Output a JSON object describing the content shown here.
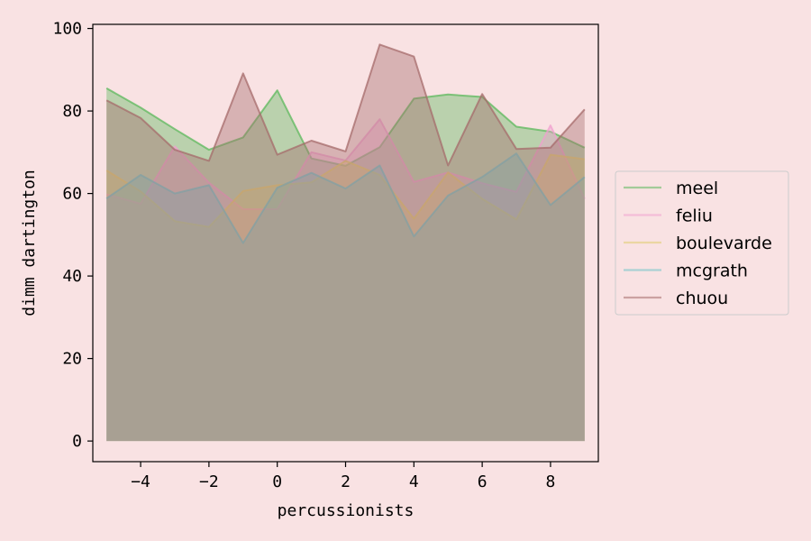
{
  "chart_data": {
    "type": "area",
    "title": "",
    "xlabel": "percussionists",
    "ylabel": "dimm dartington",
    "xlim": [
      -5.4,
      9.4
    ],
    "ylim": [
      -5,
      101
    ],
    "xticks": [
      -4,
      -2,
      0,
      2,
      4,
      6,
      8
    ],
    "yticks": [
      0,
      20,
      40,
      60,
      80,
      100
    ],
    "xtick_labels": [
      "−4",
      "−2",
      "0",
      "2",
      "4",
      "6",
      "8"
    ],
    "ytick_labels": [
      "0",
      "20",
      "40",
      "60",
      "80",
      "100"
    ],
    "grid": false,
    "legend_position": "outside-right",
    "x": [
      -5,
      -4,
      -3,
      -2,
      -1,
      0,
      1,
      2,
      3,
      4,
      5,
      6,
      7,
      8,
      9
    ],
    "series": [
      {
        "name": "meel",
        "color": "#5cb85c",
        "values": [
          85.5,
          80.8,
          75.6,
          70.6,
          73.6,
          85.0,
          68.5,
          66.7,
          71.2,
          83.0,
          84.0,
          83.4,
          76.2,
          75.0,
          71.1
        ]
      },
      {
        "name": "feliu",
        "color": "#f09fcf",
        "values": [
          59.8,
          57.5,
          71.4,
          62.6,
          56.2,
          56.2,
          70.0,
          68.0,
          78.0,
          62.8,
          65.1,
          62.5,
          60.4,
          76.5,
          58.7
        ]
      },
      {
        "name": "boulevarde",
        "color": "#e0cc6e",
        "values": [
          65.6,
          60.5,
          53.3,
          51.9,
          60.6,
          62.0,
          62.7,
          67.9,
          64.5,
          53.9,
          65.1,
          58.7,
          53.7,
          69.4,
          68.3
        ]
      },
      {
        "name": "mcgrath",
        "color": "#6bc3c9",
        "values": [
          58.8,
          64.5,
          60.0,
          62.0,
          48.0,
          61.4,
          65.0,
          61.2,
          66.8,
          49.6,
          59.5,
          64.0,
          69.7,
          57.2,
          64.0
        ]
      },
      {
        "name": "chuou",
        "color": "#a66b6b",
        "values": [
          82.6,
          78.3,
          70.6,
          67.9,
          89.1,
          69.4,
          72.8,
          70.2,
          96.1,
          93.2,
          66.8,
          84.1,
          70.8,
          71.1,
          80.4
        ]
      }
    ]
  }
}
